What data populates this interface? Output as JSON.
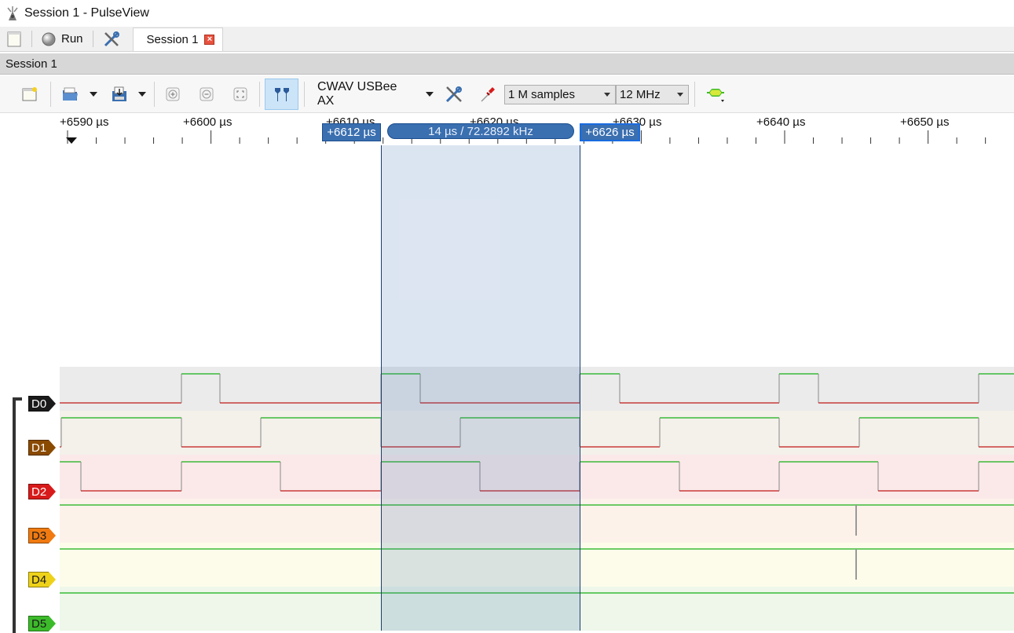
{
  "window": {
    "title": "Session 1 - PulseView"
  },
  "tabbar": {
    "run_label": "Run",
    "tab_label": "Session 1",
    "tab_close": "×"
  },
  "session_header": {
    "title": "Session 1"
  },
  "toolbar": {
    "device": "CWAV USBee AX",
    "samples": "1 M samples",
    "samplerate": "12 MHz"
  },
  "ruler": {
    "labels": [
      "+6590 µs",
      "+6600 µs",
      "+6610 µs",
      "+6620 µs",
      "+6630 µs",
      "+6640 µs",
      "+6650 µs"
    ]
  },
  "cursors": {
    "left": "+6612 µs",
    "right": "+6626 µs",
    "interval": "14 µs / 72.2892 kHz"
  },
  "channels": [
    {
      "name": "D0",
      "color": "#1a1a1a",
      "text_color": "#ffffff"
    },
    {
      "name": "D1",
      "color": "#8a4a00",
      "text_color": "#ffffff"
    },
    {
      "name": "D2",
      "color": "#d81a1a",
      "text_color": "#ffffff"
    },
    {
      "name": "D3",
      "color": "#f07a10",
      "text_color": "#1a1a1a"
    },
    {
      "name": "D4",
      "color": "#eed21a",
      "text_color": "#1a1a1a"
    },
    {
      "name": "D5",
      "color": "#3cbb2a",
      "text_color": "#1a1a1a"
    }
  ],
  "colors": {
    "cursor_fill": "#3a6fb0",
    "trace_high": "#16b016",
    "trace_low": "#c01818"
  }
}
